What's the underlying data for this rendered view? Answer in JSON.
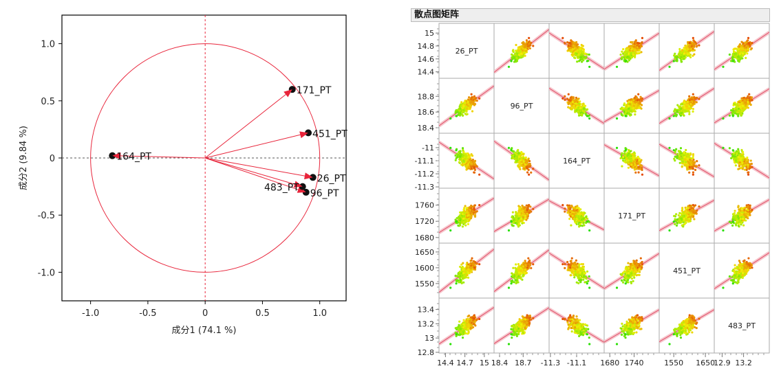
{
  "chart_data": [
    {
      "type": "scatter",
      "subtype": "loading-plot",
      "xlabel": "成分1  (74.1 %)",
      "ylabel": "成分2  (9.84 %)",
      "xlim": [
        -1.25,
        1.23
      ],
      "ylim": [
        -1.25,
        1.25
      ],
      "xticks": [
        "-1.0",
        "-0.5",
        "0",
        "0.5",
        "1.0"
      ],
      "yticks": [
        "1.0",
        "0.5",
        "0",
        "-0.5",
        "-1.0"
      ],
      "unit_circle": true,
      "points": [
        {
          "label": "171_PT",
          "x": 0.76,
          "y": 0.6
        },
        {
          "label": "451_PT",
          "x": 0.9,
          "y": 0.22
        },
        {
          "label": "26_PT",
          "x": 0.94,
          "y": -0.17
        },
        {
          "label": "96_PT",
          "x": 0.88,
          "y": -0.3
        },
        {
          "label": "483_PT",
          "x": 0.85,
          "y": -0.25
        },
        {
          "label": "164_PT",
          "x": -0.81,
          "y": 0.02
        }
      ],
      "color": "#e8243a"
    },
    {
      "type": "scatter",
      "subtype": "scatter-matrix",
      "title": "散点图矩阵",
      "variables": [
        {
          "name": "26_PT",
          "range": [
            14.3,
            15.15
          ],
          "yticks": [
            "15",
            "14.8",
            "14.6",
            "14.4"
          ],
          "xticks": [
            "14.4",
            "14.7",
            "15"
          ]
        },
        {
          "name": "96_PT",
          "range": [
            18.33,
            19.03
          ],
          "yticks": [
            "18.8",
            "18.6",
            "18.4"
          ],
          "xticks": [
            "18.4",
            "18.7"
          ]
        },
        {
          "name": "164_PT",
          "range": [
            -11.31,
            -10.89
          ],
          "yticks": [
            "-11",
            "-11.1",
            "-11.2",
            "-11.3"
          ],
          "xticks": [
            "-11.3",
            "-11.1"
          ]
        },
        {
          "name": "171_PT",
          "range": [
            1666,
            1802
          ],
          "yticks": [
            "1760",
            "1720",
            "1680"
          ],
          "xticks": [
            "1680",
            "1740"
          ]
        },
        {
          "name": "451_PT",
          "range": [
            1504,
            1678
          ],
          "yticks": [
            "1650",
            "1600",
            "1550"
          ],
          "xticks": [
            "1550",
            "1650"
          ]
        },
        {
          "name": "483_PT",
          "range": [
            12.79,
            13.56
          ],
          "yticks": [
            "13.4",
            "13.2",
            "13",
            "12.8"
          ],
          "xticks": [
            "12.9",
            "13.2"
          ]
        }
      ],
      "fit_line": true,
      "point_colors": [
        "#33bb22",
        "#ccd000",
        "#ff3300"
      ]
    }
  ]
}
